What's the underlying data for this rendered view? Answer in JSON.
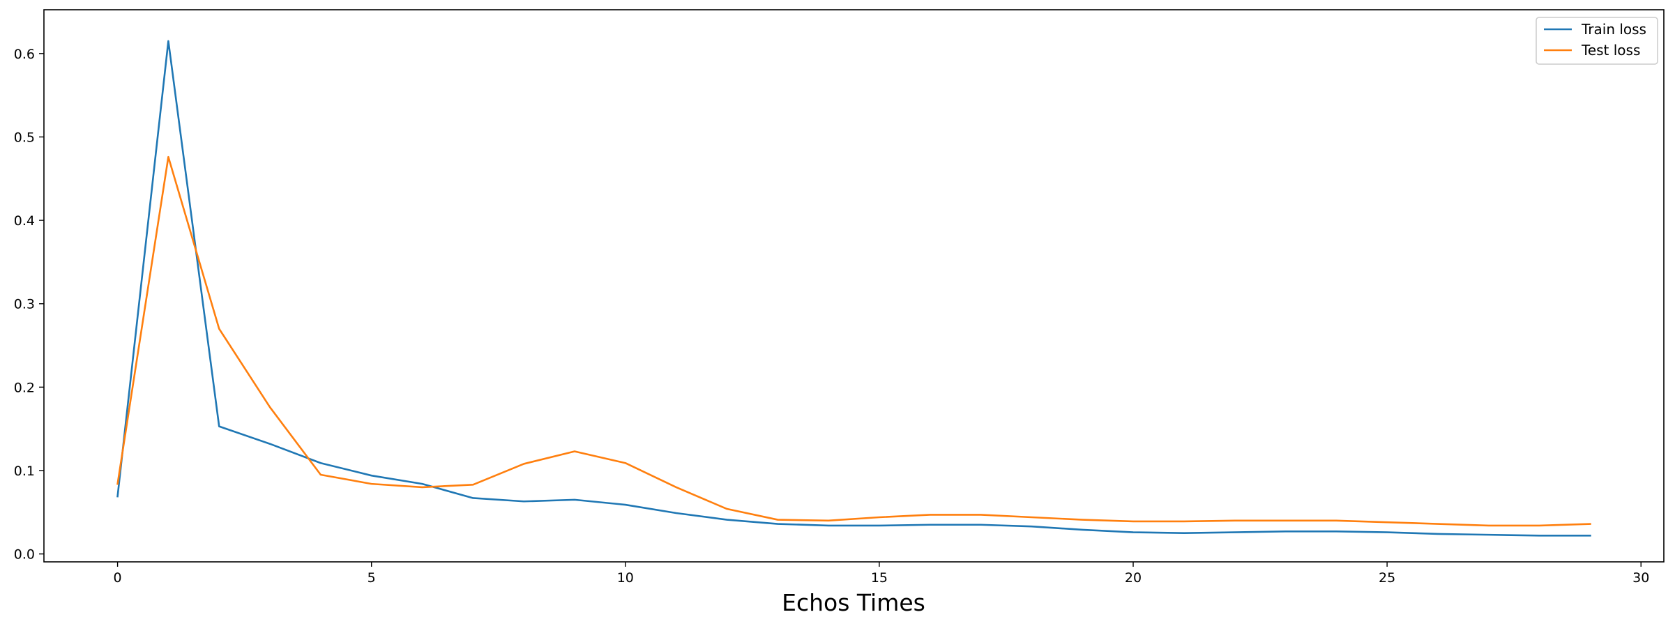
{
  "chart_data": {
    "type": "line",
    "title": "",
    "xlabel": "Echos Times",
    "ylabel": "",
    "xlim": [
      -1.45,
      30.45
    ],
    "ylim": [
      -0.0095,
      0.6525
    ],
    "xticks": [
      0,
      5,
      10,
      15,
      20,
      25,
      30
    ],
    "yticks": [
      0.0,
      0.1,
      0.2,
      0.3,
      0.4,
      0.5,
      0.6
    ],
    "xtick_labels": [
      "0",
      "5",
      "10",
      "15",
      "20",
      "25",
      "30"
    ],
    "ytick_labels": [
      "0.0",
      "0.1",
      "0.2",
      "0.3",
      "0.4",
      "0.5",
      "0.6"
    ],
    "grid": false,
    "legend_position": "top-right",
    "x": [
      0,
      1,
      2,
      3,
      4,
      5,
      6,
      7,
      8,
      9,
      10,
      11,
      12,
      13,
      14,
      15,
      16,
      17,
      18,
      19,
      20,
      21,
      22,
      23,
      24,
      25,
      26,
      27,
      28,
      29
    ],
    "series": [
      {
        "name": "Train loss",
        "color": "#1f77b4",
        "values": [
          0.069,
          0.615,
          0.153,
          0.132,
          0.109,
          0.094,
          0.084,
          0.067,
          0.063,
          0.065,
          0.059,
          0.049,
          0.041,
          0.036,
          0.034,
          0.034,
          0.035,
          0.035,
          0.033,
          0.029,
          0.026,
          0.025,
          0.026,
          0.027,
          0.027,
          0.026,
          0.024,
          0.023,
          0.022,
          0.022
        ]
      },
      {
        "name": "Test loss",
        "color": "#ff7f0e",
        "values": [
          0.084,
          0.476,
          0.27,
          0.176,
          0.095,
          0.084,
          0.08,
          0.083,
          0.108,
          0.123,
          0.109,
          0.08,
          0.054,
          0.041,
          0.04,
          0.044,
          0.047,
          0.047,
          0.044,
          0.041,
          0.039,
          0.039,
          0.04,
          0.04,
          0.04,
          0.038,
          0.036,
          0.034,
          0.034,
          0.036
        ]
      }
    ]
  }
}
